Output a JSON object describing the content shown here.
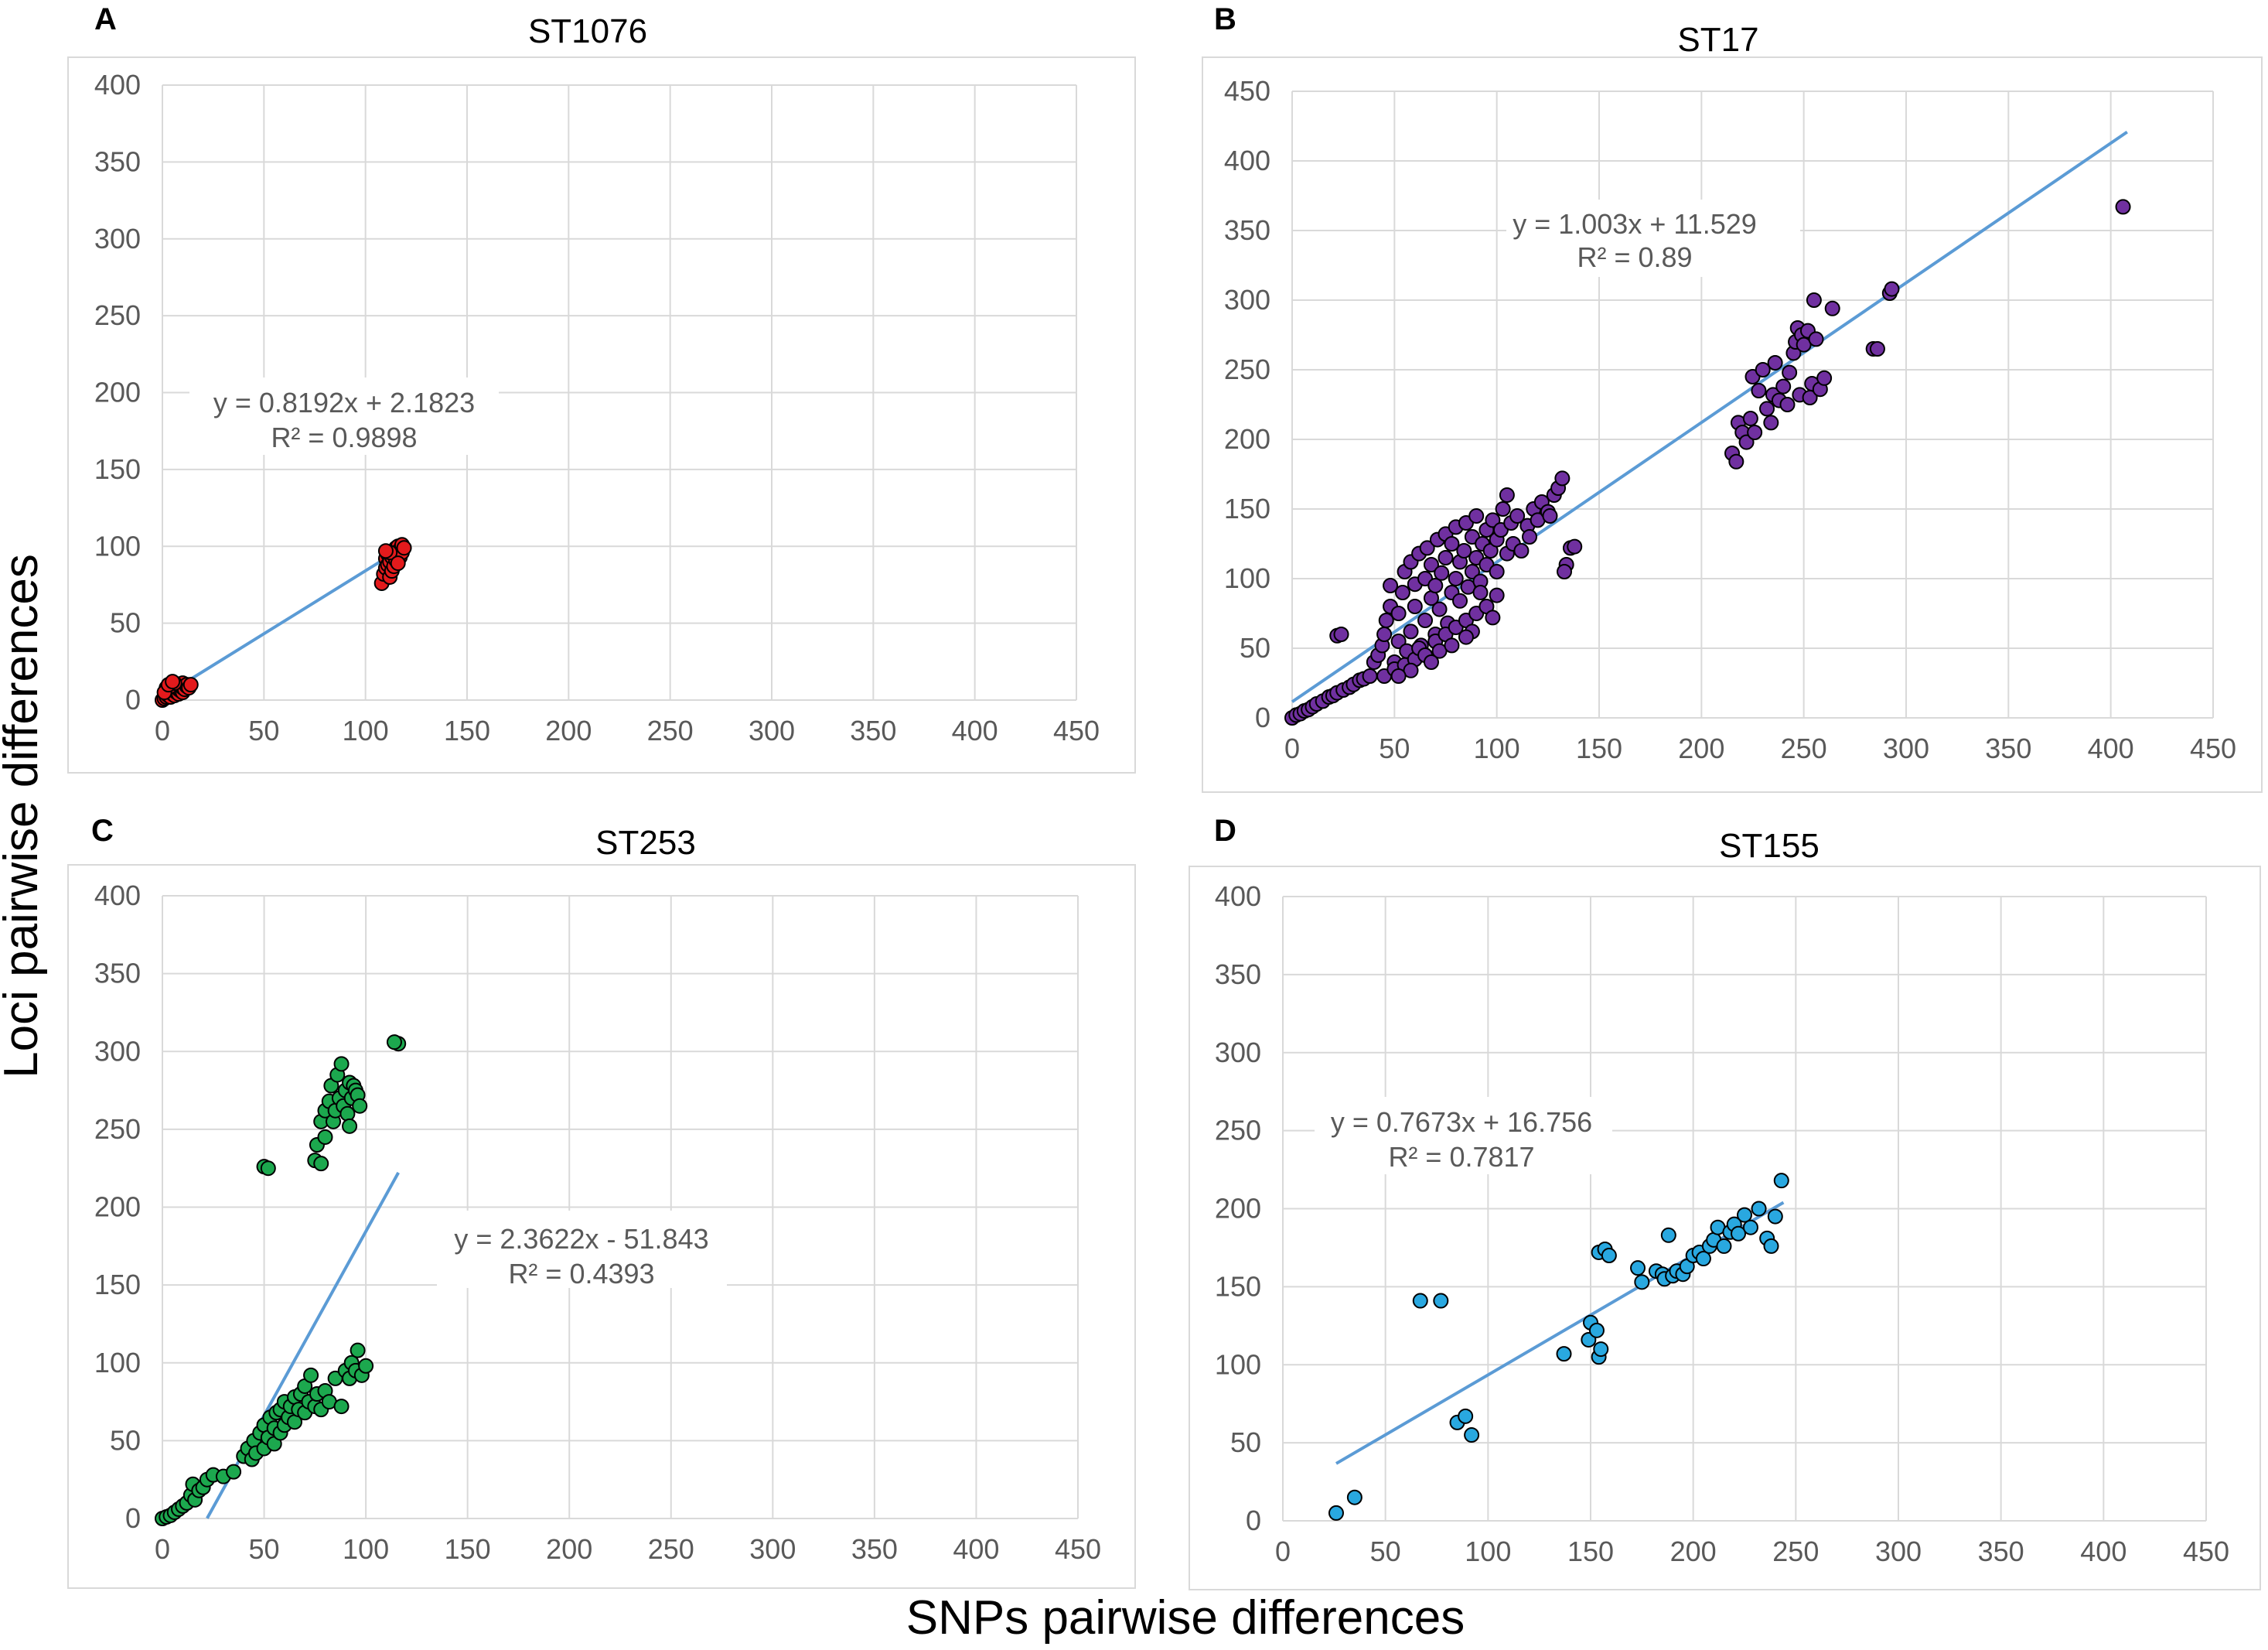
{
  "figure": {
    "xlabel": "SNPs pairwise differences",
    "ylabel": "Loci pairwise differences"
  },
  "chart_data": [
    {
      "panel": "A",
      "type": "scatter",
      "title": "ST1076",
      "xlim": [
        0,
        450
      ],
      "ylim": [
        0,
        400
      ],
      "xticks": [
        0,
        50,
        100,
        150,
        200,
        250,
        300,
        350,
        400,
        450
      ],
      "yticks": [
        0,
        50,
        100,
        150,
        200,
        250,
        300,
        350,
        400
      ],
      "grid": true,
      "marker_color": "#e41a1c",
      "trend_color": "#5b9bd5",
      "trendline": {
        "slope": 0.8192,
        "intercept": 2.1823,
        "x_range": [
          0,
          118
        ]
      },
      "equation": "y = 0.8192x + 2.1823",
      "r2": "R² = 0.9898",
      "points": [
        [
          0,
          0
        ],
        [
          1,
          1
        ],
        [
          2,
          2
        ],
        [
          2,
          4
        ],
        [
          3,
          3
        ],
        [
          3,
          6
        ],
        [
          4,
          2
        ],
        [
          4,
          5
        ],
        [
          5,
          4
        ],
        [
          5,
          7
        ],
        [
          6,
          3
        ],
        [
          6,
          6
        ],
        [
          6,
          9
        ],
        [
          7,
          5
        ],
        [
          7,
          8
        ],
        [
          8,
          4
        ],
        [
          8,
          7
        ],
        [
          8,
          10
        ],
        [
          9,
          6
        ],
        [
          9,
          9
        ],
        [
          10,
          5
        ],
        [
          10,
          8
        ],
        [
          10,
          11
        ],
        [
          11,
          7
        ],
        [
          12,
          9
        ],
        [
          12,
          10
        ],
        [
          13,
          8
        ],
        [
          14,
          10
        ],
        [
          2,
          8
        ],
        [
          4,
          9
        ],
        [
          6,
          11
        ],
        [
          1,
          5
        ],
        [
          3,
          10
        ],
        [
          5,
          12
        ],
        [
          108,
          76
        ],
        [
          109,
          82
        ],
        [
          110,
          86
        ],
        [
          110,
          92
        ],
        [
          111,
          88
        ],
        [
          111,
          95
        ],
        [
          112,
          80
        ],
        [
          112,
          90
        ],
        [
          113,
          84
        ],
        [
          113,
          93
        ],
        [
          114,
          97
        ],
        [
          114,
          87
        ],
        [
          115,
          91
        ],
        [
          115,
          99
        ],
        [
          116,
          95
        ],
        [
          116,
          100
        ],
        [
          117,
          93
        ],
        [
          117,
          98
        ],
        [
          118,
          96
        ],
        [
          118,
          101
        ],
        [
          119,
          99
        ],
        [
          112,
          96
        ],
        [
          110,
          97
        ],
        [
          116,
          89
        ]
      ]
    },
    {
      "panel": "B",
      "type": "scatter",
      "title": "ST17",
      "xlim": [
        0,
        450
      ],
      "ylim": [
        0,
        450
      ],
      "xticks": [
        0,
        50,
        100,
        150,
        200,
        250,
        300,
        350,
        400,
        450
      ],
      "yticks": [
        0,
        50,
        100,
        150,
        200,
        250,
        300,
        350,
        400,
        450
      ],
      "grid": true,
      "marker_color": "#7030a0",
      "trend_color": "#5b9bd5",
      "trendline": {
        "slope": 1.003,
        "intercept": 11.529,
        "x_range": [
          0,
          408
        ]
      },
      "equation": "y = 1.003x + 11.529",
      "r2": "R² = 0.89",
      "points": [
        [
          0,
          0
        ],
        [
          2,
          2
        ],
        [
          4,
          3
        ],
        [
          6,
          5
        ],
        [
          8,
          6
        ],
        [
          10,
          8
        ],
        [
          12,
          10
        ],
        [
          15,
          12
        ],
        [
          18,
          15
        ],
        [
          20,
          16
        ],
        [
          22,
          18
        ],
        [
          25,
          20
        ],
        [
          28,
          22
        ],
        [
          30,
          24
        ],
        [
          33,
          27
        ],
        [
          35,
          28
        ],
        [
          38,
          30
        ],
        [
          22,
          59
        ],
        [
          24,
          60
        ],
        [
          40,
          40
        ],
        [
          42,
          45
        ],
        [
          44,
          52
        ],
        [
          45,
          60
        ],
        [
          46,
          70
        ],
        [
          48,
          80
        ],
        [
          48,
          95
        ],
        [
          50,
          40
        ],
        [
          52,
          55
        ],
        [
          52,
          75
        ],
        [
          54,
          90
        ],
        [
          55,
          105
        ],
        [
          56,
          48
        ],
        [
          58,
          62
        ],
        [
          58,
          112
        ],
        [
          60,
          80
        ],
        [
          60,
          96
        ],
        [
          62,
          118
        ],
        [
          63,
          52
        ],
        [
          65,
          70
        ],
        [
          65,
          100
        ],
        [
          66,
          122
        ],
        [
          68,
          86
        ],
        [
          68,
          110
        ],
        [
          70,
          60
        ],
        [
          70,
          95
        ],
        [
          71,
          128
        ],
        [
          72,
          78
        ],
        [
          73,
          104
        ],
        [
          75,
          115
        ],
        [
          75,
          132
        ],
        [
          76,
          68
        ],
        [
          78,
          90
        ],
        [
          78,
          125
        ],
        [
          80,
          100
        ],
        [
          80,
          137
        ],
        [
          82,
          84
        ],
        [
          82,
          112
        ],
        [
          84,
          120
        ],
        [
          85,
          140
        ],
        [
          86,
          94
        ],
        [
          88,
          105
        ],
        [
          88,
          130
        ],
        [
          90,
          115
        ],
        [
          90,
          145
        ],
        [
          92,
          98
        ],
        [
          93,
          125
        ],
        [
          95,
          110
        ],
        [
          95,
          135
        ],
        [
          97,
          120
        ],
        [
          98,
          142
        ],
        [
          100,
          105
        ],
        [
          100,
          128
        ],
        [
          102,
          135
        ],
        [
          103,
          150
        ],
        [
          105,
          118
        ],
        [
          105,
          160
        ],
        [
          107,
          140
        ],
        [
          108,
          125
        ],
        [
          110,
          145
        ],
        [
          112,
          120
        ],
        [
          115,
          138
        ],
        [
          118,
          150
        ],
        [
          120,
          142
        ],
        [
          122,
          155
        ],
        [
          125,
          148
        ],
        [
          128,
          160
        ],
        [
          130,
          165
        ],
        [
          132,
          172
        ],
        [
          134,
          110
        ],
        [
          136,
          122
        ],
        [
          133,
          105
        ],
        [
          138,
          123
        ],
        [
          126,
          145
        ],
        [
          116,
          130
        ],
        [
          45,
          30
        ],
        [
          50,
          35
        ],
        [
          55,
          38
        ],
        [
          60,
          42
        ],
        [
          62,
          50
        ],
        [
          65,
          45
        ],
        [
          70,
          55
        ],
        [
          72,
          48
        ],
        [
          75,
          60
        ],
        [
          80,
          65
        ],
        [
          85,
          70
        ],
        [
          88,
          62
        ],
        [
          90,
          75
        ],
        [
          95,
          80
        ],
        [
          98,
          72
        ],
        [
          100,
          88
        ],
        [
          92,
          90
        ],
        [
          85,
          58
        ],
        [
          78,
          52
        ],
        [
          68,
          40
        ],
        [
          58,
          34
        ],
        [
          52,
          30
        ],
        [
          215,
          190
        ],
        [
          217,
          184
        ],
        [
          218,
          212
        ],
        [
          220,
          205
        ],
        [
          222,
          198
        ],
        [
          224,
          215
        ],
        [
          225,
          245
        ],
        [
          226,
          205
        ],
        [
          228,
          235
        ],
        [
          230,
          250
        ],
        [
          232,
          222
        ],
        [
          234,
          212
        ],
        [
          235,
          232
        ],
        [
          236,
          255
        ],
        [
          238,
          228
        ],
        [
          240,
          238
        ],
        [
          242,
          225
        ],
        [
          243,
          248
        ],
        [
          245,
          262
        ],
        [
          246,
          270
        ],
        [
          247,
          280
        ],
        [
          248,
          232
        ],
        [
          249,
          275
        ],
        [
          250,
          268
        ],
        [
          252,
          278
        ],
        [
          253,
          230
        ],
        [
          254,
          240
        ],
        [
          255,
          300
        ],
        [
          256,
          272
        ],
        [
          258,
          236
        ],
        [
          260,
          244
        ],
        [
          264,
          294
        ],
        [
          284,
          265
        ],
        [
          286,
          265
        ],
        [
          292,
          305
        ],
        [
          293,
          308
        ],
        [
          406,
          367
        ]
      ]
    },
    {
      "panel": "C",
      "type": "scatter",
      "title": "ST253",
      "xlim": [
        0,
        450
      ],
      "ylim": [
        0,
        400
      ],
      "xticks": [
        0,
        50,
        100,
        150,
        200,
        250,
        300,
        350,
        400,
        450
      ],
      "yticks": [
        0,
        50,
        100,
        150,
        200,
        250,
        300,
        350,
        400
      ],
      "grid": true,
      "marker_color": "#1ca84e",
      "trend_color": "#5b9bd5",
      "trendline": {
        "slope": 2.3622,
        "intercept": -51.843,
        "x_range": [
          22,
          116
        ]
      },
      "equation": "y = 2.3622x - 51.843",
      "r2": "R² = 0.4393",
      "points": [
        [
          0,
          0
        ],
        [
          2,
          1
        ],
        [
          4,
          2
        ],
        [
          6,
          4
        ],
        [
          8,
          6
        ],
        [
          10,
          8
        ],
        [
          12,
          10
        ],
        [
          14,
          15
        ],
        [
          15,
          22
        ],
        [
          16,
          12
        ],
        [
          18,
          18
        ],
        [
          20,
          20
        ],
        [
          22,
          25
        ],
        [
          25,
          28
        ],
        [
          30,
          27
        ],
        [
          35,
          30
        ],
        [
          40,
          40
        ],
        [
          42,
          45
        ],
        [
          44,
          38
        ],
        [
          45,
          50
        ],
        [
          46,
          42
        ],
        [
          48,
          55
        ],
        [
          50,
          45
        ],
        [
          50,
          60
        ],
        [
          52,
          52
        ],
        [
          53,
          65
        ],
        [
          55,
          48
        ],
        [
          55,
          58
        ],
        [
          56,
          68
        ],
        [
          58,
          55
        ],
        [
          58,
          70
        ],
        [
          60,
          60
        ],
        [
          60,
          75
        ],
        [
          62,
          65
        ],
        [
          63,
          72
        ],
        [
          65,
          62
        ],
        [
          65,
          78
        ],
        [
          67,
          70
        ],
        [
          68,
          80
        ],
        [
          70,
          68
        ],
        [
          70,
          85
        ],
        [
          72,
          75
        ],
        [
          73,
          92
        ],
        [
          75,
          72
        ],
        [
          76,
          80
        ],
        [
          78,
          70
        ],
        [
          80,
          82
        ],
        [
          82,
          75
        ],
        [
          85,
          90
        ],
        [
          88,
          72
        ],
        [
          90,
          95
        ],
        [
          92,
          90
        ],
        [
          93,
          100
        ],
        [
          95,
          95
        ],
        [
          96,
          108
        ],
        [
          98,
          92
        ],
        [
          100,
          98
        ],
        [
          50,
          226
        ],
        [
          52,
          225
        ],
        [
          75,
          230
        ],
        [
          76,
          240
        ],
        [
          78,
          228
        ],
        [
          78,
          255
        ],
        [
          80,
          262
        ],
        [
          80,
          245
        ],
        [
          82,
          268
        ],
        [
          83,
          278
        ],
        [
          84,
          255
        ],
        [
          85,
          262
        ],
        [
          86,
          285
        ],
        [
          87,
          270
        ],
        [
          88,
          292
        ],
        [
          89,
          265
        ],
        [
          90,
          275
        ],
        [
          91,
          260
        ],
        [
          92,
          280
        ],
        [
          92,
          252
        ],
        [
          93,
          270
        ],
        [
          94,
          278
        ],
        [
          95,
          275
        ],
        [
          96,
          272
        ],
        [
          97,
          265
        ],
        [
          116,
          305
        ],
        [
          114,
          306
        ]
      ]
    },
    {
      "panel": "D",
      "type": "scatter",
      "title": "ST155",
      "xlim": [
        0,
        450
      ],
      "ylim": [
        0,
        400
      ],
      "xticks": [
        0,
        50,
        100,
        150,
        200,
        250,
        300,
        350,
        400,
        450
      ],
      "yticks": [
        0,
        50,
        100,
        150,
        200,
        250,
        300,
        350,
        400
      ],
      "grid": true,
      "marker_color": "#29a8e0",
      "trend_color": "#5b9bd5",
      "trendline": {
        "slope": 0.7673,
        "intercept": 16.756,
        "x_range": [
          26,
          244
        ]
      },
      "equation": "y = 0.7673x + 16.756",
      "r2": "R² = 0.7817",
      "points": [
        [
          26,
          5
        ],
        [
          35,
          15
        ],
        [
          67,
          141
        ],
        [
          77,
          141
        ],
        [
          85,
          63
        ],
        [
          89,
          67
        ],
        [
          92,
          55
        ],
        [
          137,
          107
        ],
        [
          149,
          116
        ],
        [
          150,
          127
        ],
        [
          153,
          122
        ],
        [
          154,
          105
        ],
        [
          155,
          110
        ],
        [
          154,
          172
        ],
        [
          157,
          174
        ],
        [
          159,
          170
        ],
        [
          173,
          162
        ],
        [
          175,
          153
        ],
        [
          182,
          160
        ],
        [
          185,
          158
        ],
        [
          186,
          155
        ],
        [
          188,
          183
        ],
        [
          190,
          157
        ],
        [
          192,
          160
        ],
        [
          195,
          158
        ],
        [
          197,
          163
        ],
        [
          200,
          170
        ],
        [
          203,
          172
        ],
        [
          205,
          168
        ],
        [
          208,
          176
        ],
        [
          210,
          180
        ],
        [
          212,
          188
        ],
        [
          215,
          176
        ],
        [
          218,
          185
        ],
        [
          220,
          190
        ],
        [
          222,
          184
        ],
        [
          225,
          196
        ],
        [
          228,
          188
        ],
        [
          232,
          200
        ],
        [
          236,
          181
        ],
        [
          238,
          176
        ],
        [
          240,
          195
        ],
        [
          243,
          218
        ]
      ]
    }
  ]
}
